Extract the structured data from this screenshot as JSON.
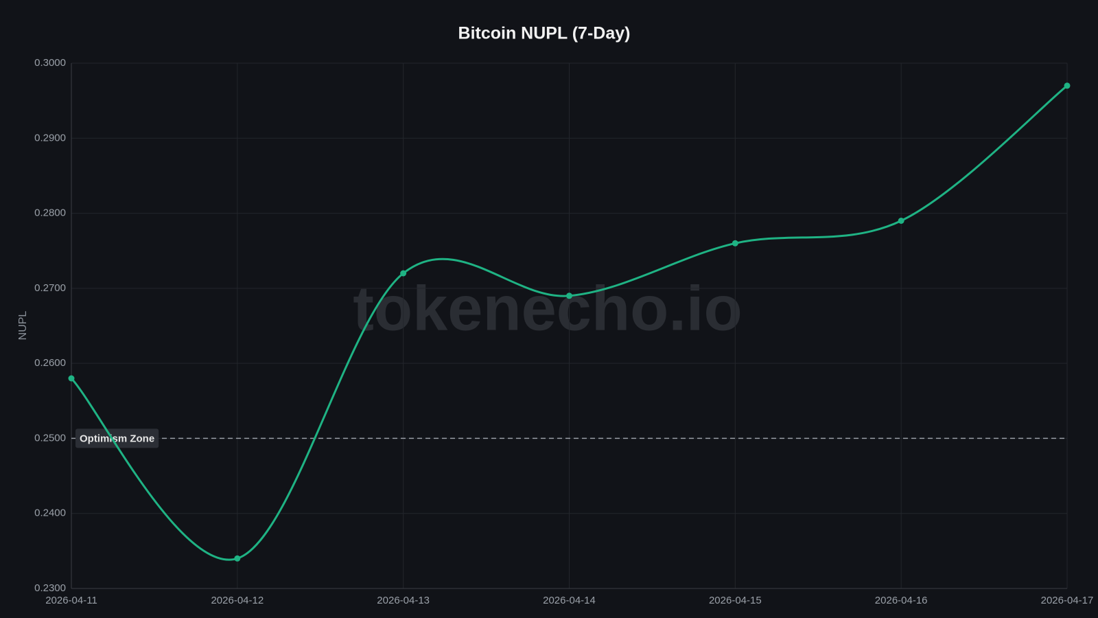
{
  "chart_data": {
    "type": "line",
    "title": "Bitcoin NUPL (7-Day)",
    "y_label": "NUPL",
    "watermark": "tokenecho.io",
    "x": [
      "2026-04-11",
      "2026-04-12",
      "2026-04-13",
      "2026-04-14",
      "2026-04-15",
      "2026-04-16",
      "2026-04-17"
    ],
    "series": [
      {
        "name": "NUPL",
        "color": "#1fb384",
        "values": [
          0.258,
          0.234,
          0.272,
          0.269,
          0.276,
          0.279,
          0.297
        ]
      }
    ],
    "ylim": [
      0.23,
      0.3
    ],
    "yticks": [
      {
        "value": 0.23,
        "label": "0.2300"
      },
      {
        "value": 0.24,
        "label": "0.2400"
      },
      {
        "value": 0.25,
        "label": "0.2500"
      },
      {
        "value": 0.26,
        "label": "0.2600"
      },
      {
        "value": 0.27,
        "label": "0.2700"
      },
      {
        "value": 0.28,
        "label": "0.2800"
      },
      {
        "value": 0.29,
        "label": "0.2900"
      },
      {
        "value": 0.3,
        "label": "0.3000"
      }
    ],
    "grid": true,
    "smooth": true,
    "annotations": [
      {
        "y": 0.25,
        "label": "Optimism Zone"
      }
    ]
  }
}
